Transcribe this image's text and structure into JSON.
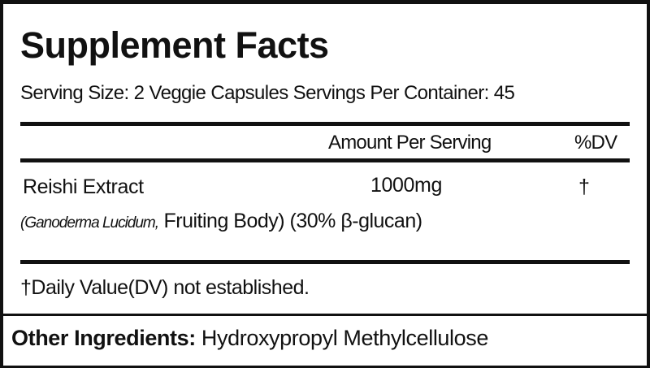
{
  "title": "Supplement Facts",
  "serving_info": "Serving Size: 2 Veggie Capsules  Servings Per Container: 45",
  "header": {
    "amount": "Amount Per Serving",
    "dv": "%DV"
  },
  "ingredients": [
    {
      "name": "Reishi Extract",
      "amount": "1000mg",
      "dv": "†",
      "detail_italic": "(Ganoderma Lucidum,",
      "detail": " Fruiting Body) (30% β-glucan)"
    }
  ],
  "footnote": "†Daily Value(DV) not established.",
  "other_ingredients": {
    "label": "Other Ingredients:",
    "value": " Hydroxypropyl Methylcellulose"
  }
}
